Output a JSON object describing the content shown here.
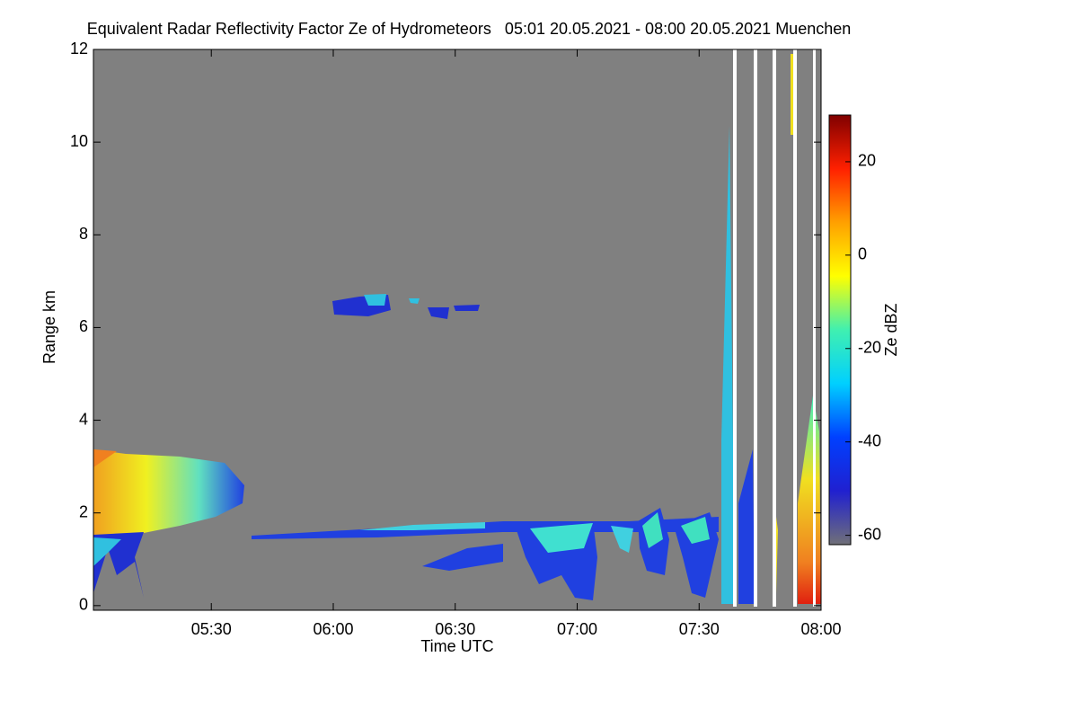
{
  "chart_data": {
    "type": "heatmap",
    "title": "Equivalent Radar Reflectivity Factor Ze of Hydrometeors   05:01 20.05.2021 - 08:00 20.05.2021 Muenchen",
    "xlabel": "Time UTC",
    "ylabel": "Range km",
    "colorbar_label": "Ze dBZ",
    "xlim": [
      301,
      480
    ],
    "xticks": [
      {
        "value": 330,
        "label": "05:30"
      },
      {
        "value": 360,
        "label": "06:00"
      },
      {
        "value": 390,
        "label": "06:30"
      },
      {
        "value": 420,
        "label": "07:00"
      },
      {
        "value": 450,
        "label": "07:30"
      },
      {
        "value": 480,
        "label": "08:00"
      }
    ],
    "ylim": [
      -0.1,
      12
    ],
    "yticks": [
      0,
      2,
      4,
      6,
      8,
      10,
      12
    ],
    "clim": [
      -62,
      30
    ],
    "cticks": [
      -60,
      -40,
      -20,
      0,
      20
    ],
    "colormap": [
      "#707078",
      "#2020d0",
      "#0040ff",
      "#00d0ff",
      "#40f0b0",
      "#ffff00",
      "#ffa000",
      "#ff2000",
      "#800000"
    ],
    "background": "#808080"
  }
}
